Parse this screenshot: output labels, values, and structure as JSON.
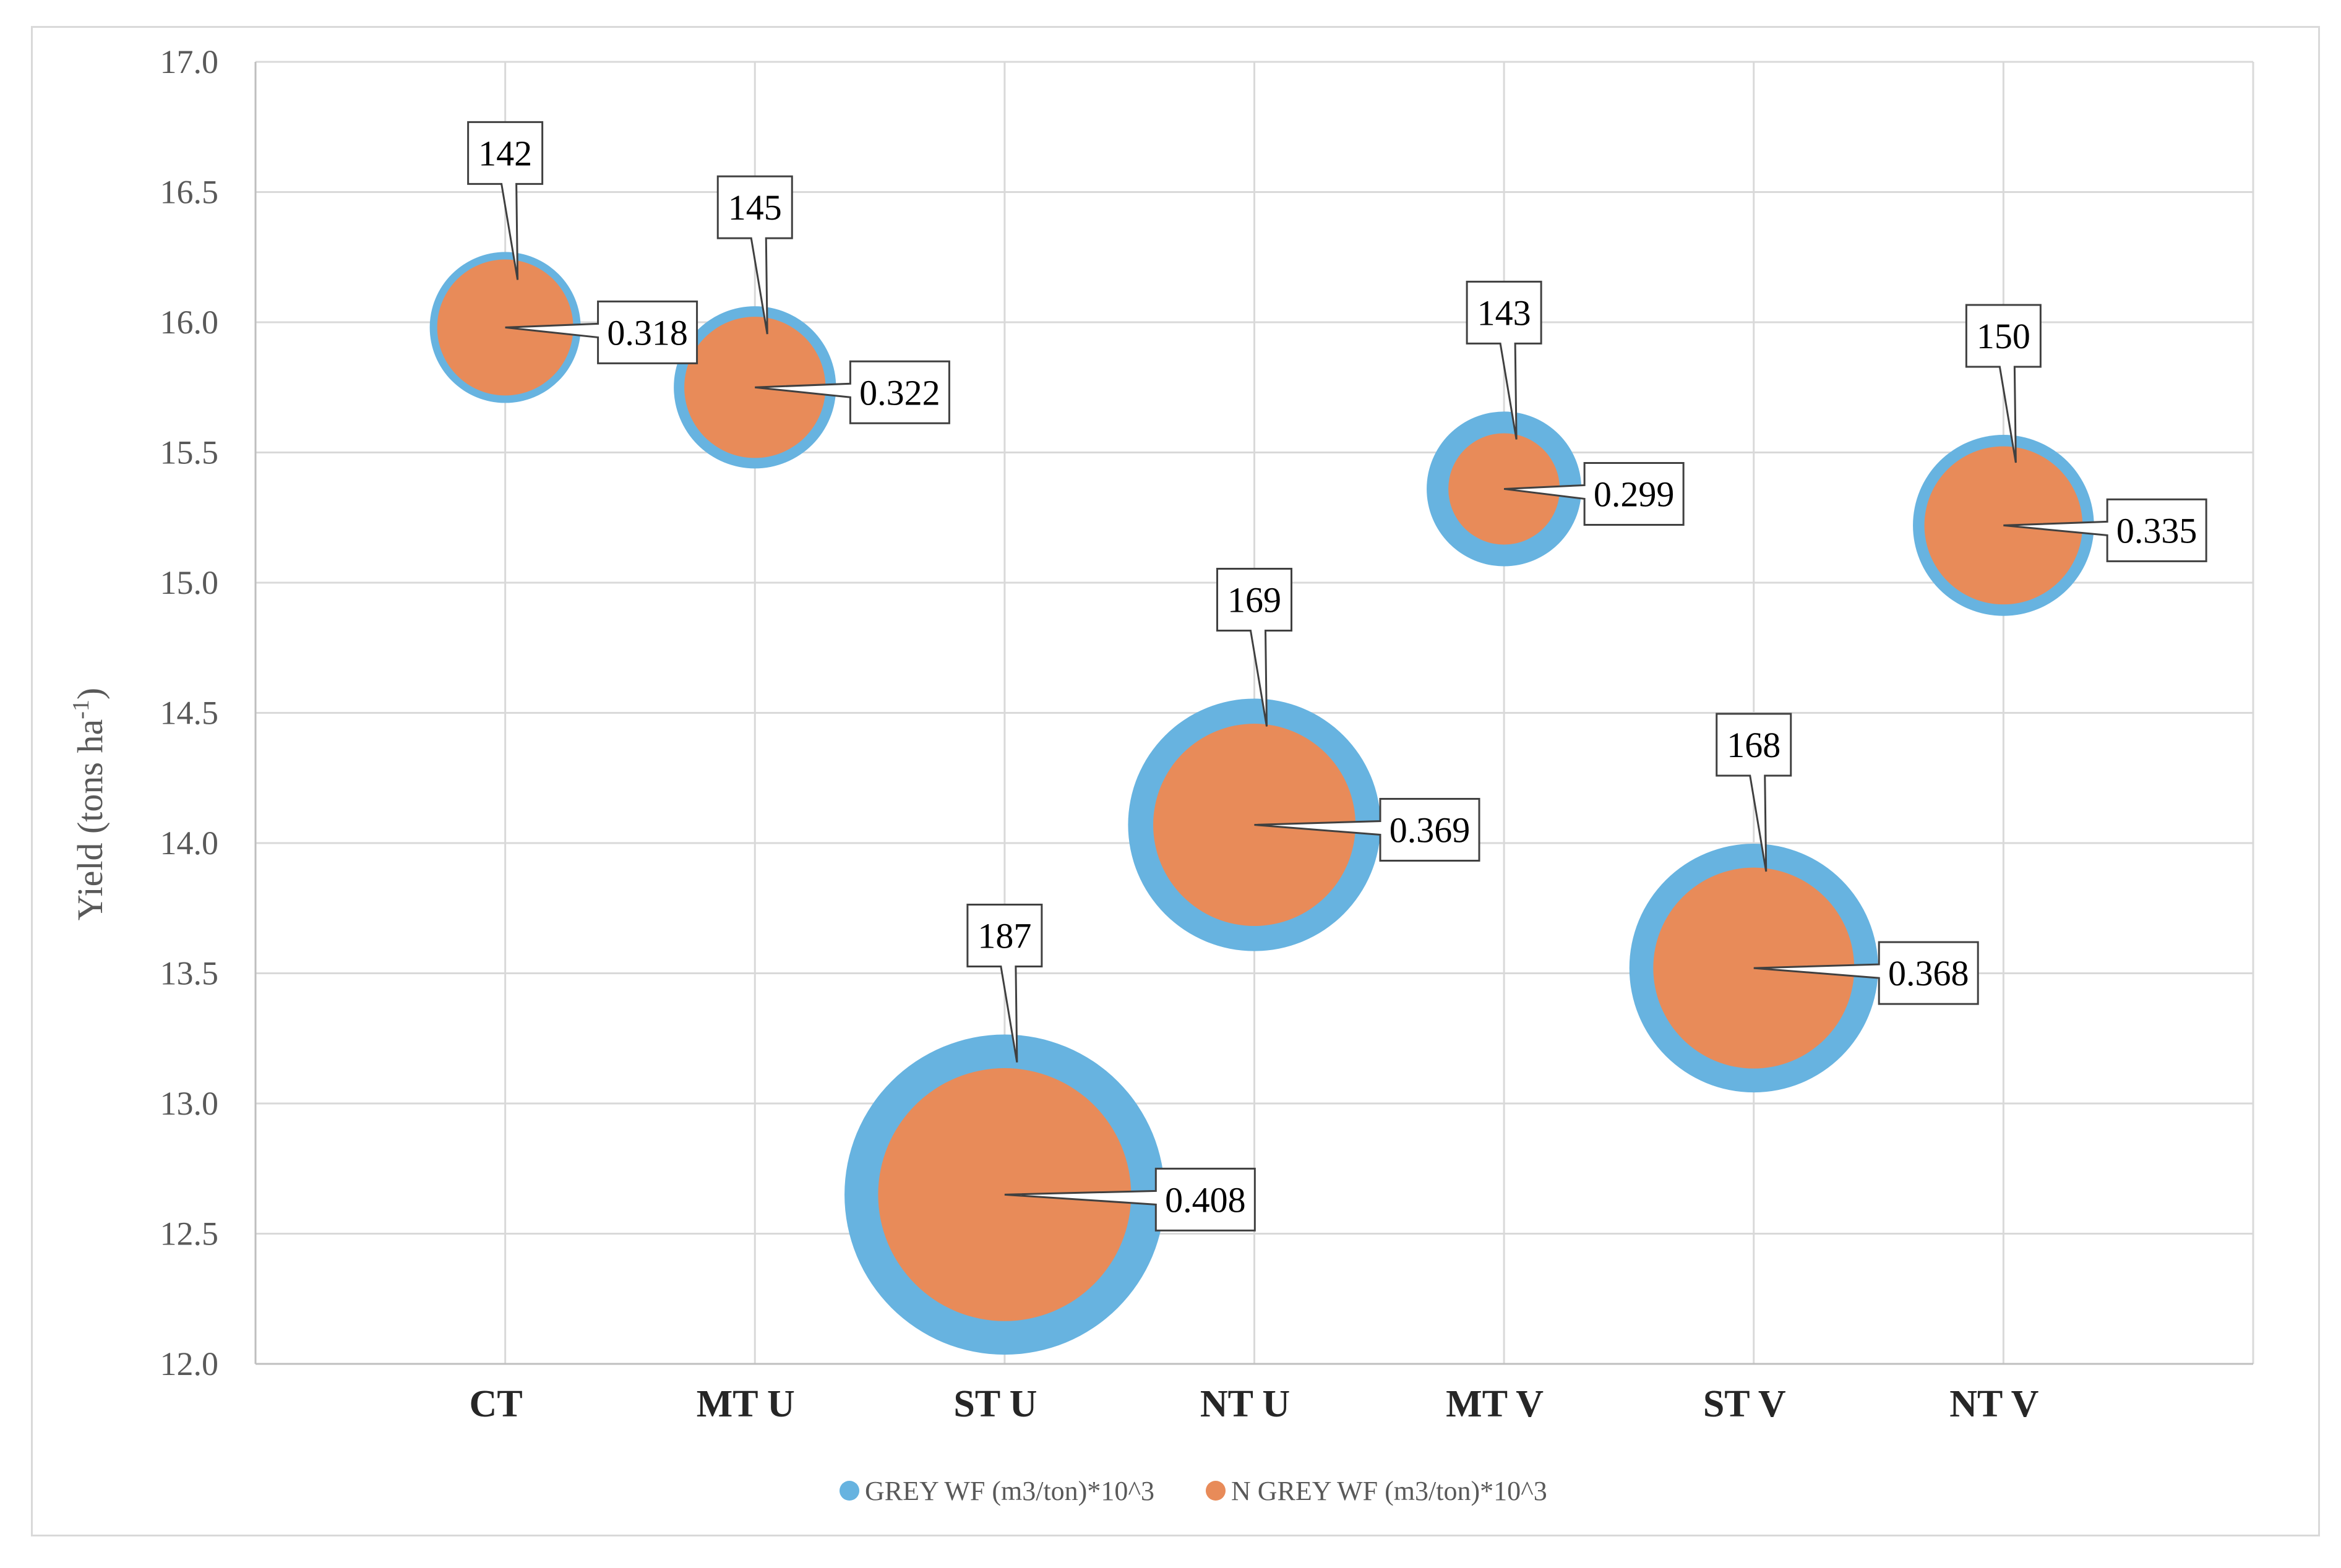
{
  "chart_data": {
    "type": "bubble",
    "title": "",
    "xlabel": "",
    "ylabel": "Yield (tons ha",
    "ylabel_superscript": "-1",
    "ylabel_close": ")",
    "ylim": [
      12.0,
      17.0
    ],
    "yticks": [
      "12.0",
      "12.5",
      "13.0",
      "13.5",
      "14.0",
      "14.5",
      "15.0",
      "15.5",
      "16.0",
      "16.5",
      "17.0"
    ],
    "categories": [
      "CT",
      "MT U",
      "ST U",
      "NT U",
      "MT V",
      "ST V",
      "NT V"
    ],
    "yield": [
      15.98,
      15.75,
      12.65,
      14.07,
      15.36,
      13.52,
      15.22
    ],
    "series": [
      {
        "name": "GREY WF (m3/ton)*10^3",
        "color": "#67b3e0",
        "values": [
          142,
          145,
          187,
          169,
          143,
          168,
          150
        ],
        "labels": [
          "142",
          "145",
          "187",
          "169",
          "143",
          "168",
          "150"
        ]
      },
      {
        "name": "N GREY WF (m3/ton)*10^3",
        "color": "#e88b59",
        "values": [
          0.318,
          0.322,
          0.408,
          0.369,
          0.299,
          0.368,
          0.335
        ],
        "labels": [
          "0.318",
          "0.322",
          "0.408",
          "0.369",
          "0.299",
          "0.368",
          "0.335"
        ]
      }
    ],
    "grid": true,
    "legend_position": "bottom-center"
  }
}
